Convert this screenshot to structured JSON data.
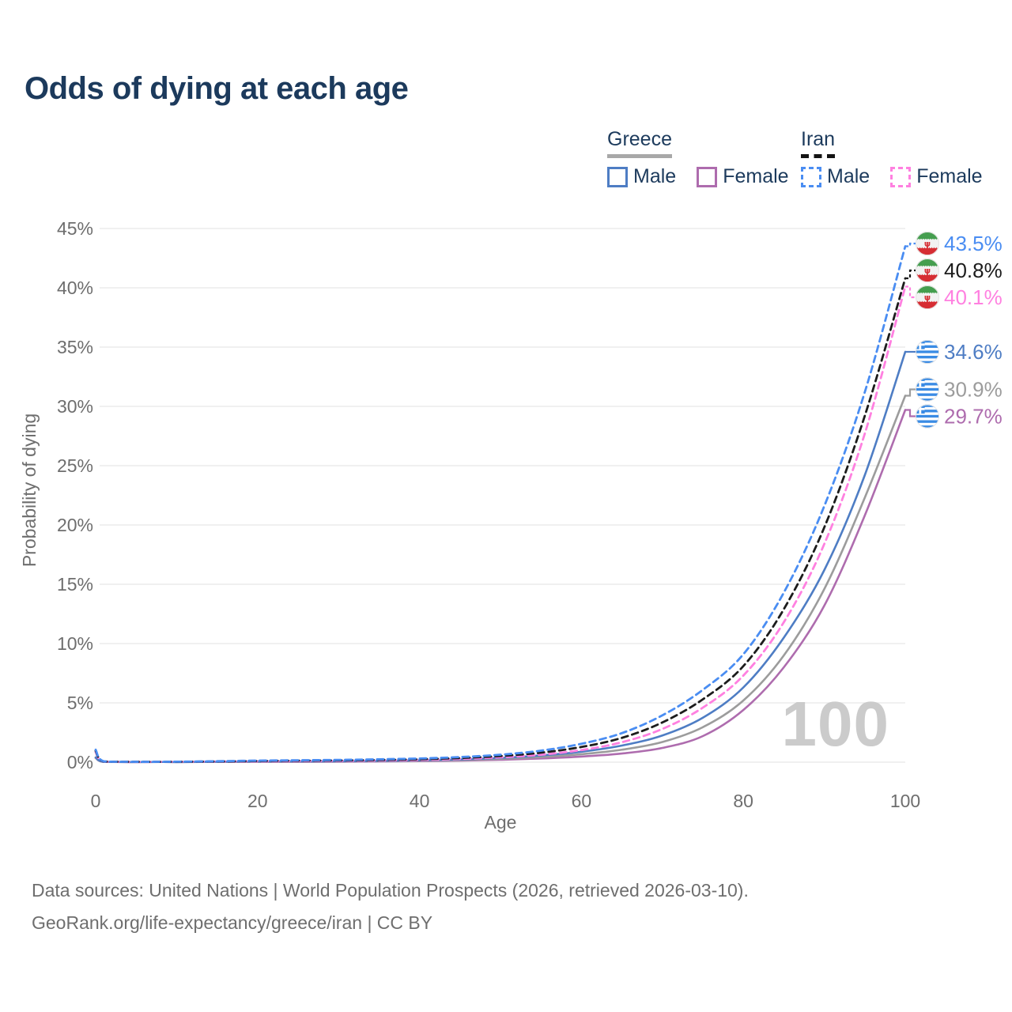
{
  "title": "Odds of dying at each age",
  "watermark": "100",
  "legend": {
    "greece": {
      "label": "Greece",
      "male": "Male",
      "female": "Female"
    },
    "iran": {
      "label": "Iran",
      "male": "Male",
      "female": "Female"
    }
  },
  "colors": {
    "title_text": "#1c3a5c",
    "greece_underline": "#a8a8a8",
    "iran_underline": "#141414",
    "grid": "#ececec",
    "axis_text": "#6e6e6e",
    "watermark_text": "#cbcbcb",
    "greece_male": "#4e7dc4",
    "greece_both": "#9c9c9c",
    "greece_female": "#ae6cae",
    "iran_male": "#4a8df2",
    "iran_both": "#1c1c1c",
    "iran_female": "#ff80e0"
  },
  "chart_data": {
    "type": "line",
    "title": "Odds of dying at each age",
    "xlabel": "Age",
    "ylabel": "Probability of dying",
    "xlim": [
      0,
      100
    ],
    "ylim": [
      0,
      45
    ],
    "grid": "horizontal",
    "legend_position": "top-right",
    "x_ticks": [
      {
        "value": 0,
        "label": "0"
      },
      {
        "value": 20,
        "label": "20"
      },
      {
        "value": 40,
        "label": "40"
      },
      {
        "value": 60,
        "label": "60"
      },
      {
        "value": 80,
        "label": "80"
      },
      {
        "value": 100,
        "label": "100"
      }
    ],
    "y_ticks": [
      {
        "value": 0,
        "label": "0%"
      },
      {
        "value": 5,
        "label": "5%"
      },
      {
        "value": 10,
        "label": "10%"
      },
      {
        "value": 15,
        "label": "15%"
      },
      {
        "value": 20,
        "label": "20%"
      },
      {
        "value": 25,
        "label": "25%"
      },
      {
        "value": 30,
        "label": "30%"
      },
      {
        "value": 35,
        "label": "35%"
      },
      {
        "value": 40,
        "label": "40%"
      },
      {
        "value": 45,
        "label": "45%"
      }
    ],
    "x": [
      0,
      1,
      5,
      10,
      15,
      20,
      25,
      30,
      35,
      40,
      45,
      50,
      55,
      60,
      65,
      70,
      75,
      80,
      85,
      90,
      95,
      100
    ],
    "series": [
      {
        "name": "Iran — Male",
        "country": "iran",
        "sex": "male",
        "color": "#4a8df2",
        "dash": true,
        "end_label": "43.5%",
        "end_value": 43.5,
        "values": [
          1.05,
          0.07,
          0.03,
          0.04,
          0.08,
          0.13,
          0.16,
          0.19,
          0.24,
          0.31,
          0.43,
          0.63,
          0.97,
          1.55,
          2.45,
          3.95,
          6.1,
          9.1,
          14.3,
          21.6,
          31.2,
          43.5
        ]
      },
      {
        "name": "Iran — Both sexes",
        "country": "iran",
        "sex": "both",
        "color": "#1c1c1c",
        "dash": true,
        "end_label": "40.8%",
        "end_value": 40.8,
        "values": [
          0.95,
          0.06,
          0.03,
          0.03,
          0.06,
          0.1,
          0.13,
          0.15,
          0.19,
          0.25,
          0.35,
          0.52,
          0.8,
          1.28,
          2.05,
          3.35,
          5.3,
          8.1,
          12.9,
          19.8,
          29.2,
          40.8
        ]
      },
      {
        "name": "Iran — Female",
        "country": "iran",
        "sex": "female",
        "color": "#ff80e0",
        "dash": true,
        "end_label": "40.1%",
        "end_value": 40.1,
        "values": [
          0.85,
          0.05,
          0.02,
          0.03,
          0.05,
          0.07,
          0.09,
          0.11,
          0.14,
          0.19,
          0.27,
          0.41,
          0.63,
          1.02,
          1.68,
          2.8,
          4.6,
          7.3,
          11.8,
          18.4,
          27.7,
          40.1
        ]
      },
      {
        "name": "Greece — Male",
        "country": "greece",
        "sex": "male",
        "color": "#4e7dc4",
        "dash": false,
        "end_label": "34.6%",
        "end_value": 34.6,
        "values": [
          0.4,
          0.03,
          0.01,
          0.01,
          0.04,
          0.06,
          0.07,
          0.08,
          0.11,
          0.16,
          0.23,
          0.36,
          0.57,
          0.88,
          1.4,
          2.25,
          3.75,
          6.3,
          10.5,
          16.2,
          24.2,
          34.6
        ]
      },
      {
        "name": "Greece — Both sexes",
        "country": "greece",
        "sex": "both",
        "color": "#9c9c9c",
        "dash": false,
        "end_label": "30.9%",
        "end_value": 30.9,
        "values": [
          0.37,
          0.03,
          0.01,
          0.01,
          0.03,
          0.04,
          0.05,
          0.06,
          0.09,
          0.12,
          0.18,
          0.28,
          0.44,
          0.67,
          1.05,
          1.7,
          2.95,
          5.2,
          9.0,
          14.6,
          22.3,
          30.9
        ]
      },
      {
        "name": "Greece — Female",
        "country": "greece",
        "sex": "female",
        "color": "#ae6cae",
        "dash": false,
        "end_label": "29.7%",
        "end_value": 29.7,
        "values": [
          0.35,
          0.02,
          0.01,
          0.01,
          0.02,
          0.03,
          0.03,
          0.04,
          0.06,
          0.09,
          0.13,
          0.2,
          0.31,
          0.47,
          0.73,
          1.2,
          2.2,
          4.4,
          8.0,
          13.2,
          20.8,
          29.7
        ]
      }
    ]
  },
  "footer": {
    "line1": "Data sources: United Nations | World Population Prospects (2026, retrieved 2026-03-10).",
    "line2": "GeoRank.org/life-expectancy/greece/iran | CC BY"
  }
}
